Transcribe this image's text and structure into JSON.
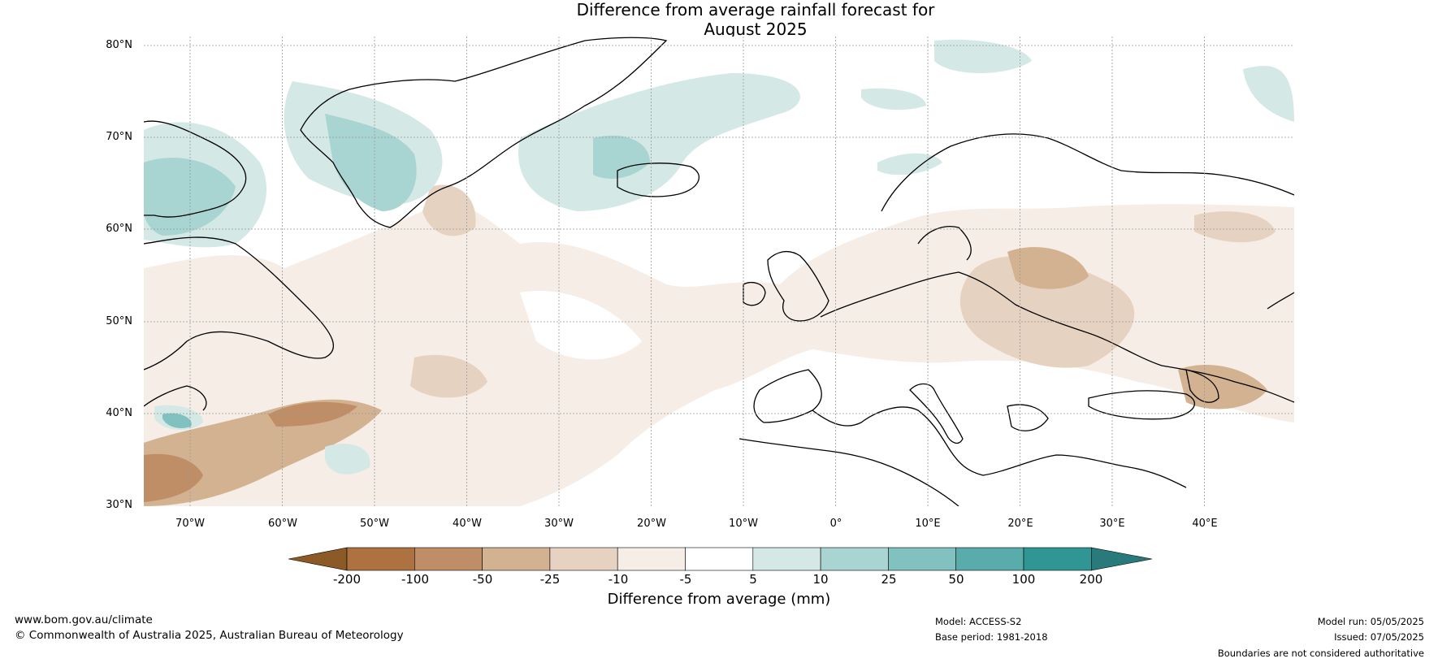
{
  "title_line1": "Difference from average rainfall forecast for",
  "title_line2": "August 2025",
  "lat_labels": [
    "80°N",
    "70°N",
    "60°N",
    "50°N",
    "40°N",
    "30°N"
  ],
  "lon_labels": [
    "70°W",
    "60°W",
    "50°W",
    "40°W",
    "30°W",
    "20°W",
    "10°W",
    "0°",
    "10°E",
    "20°E",
    "30°E",
    "40°E"
  ],
  "colorbar": {
    "tick_labels": [
      "-200",
      "-100",
      "-50",
      "-25",
      "-10",
      "-5",
      "5",
      "10",
      "25",
      "50",
      "100",
      "200"
    ],
    "colors": [
      "#8c5a26",
      "#ad7240",
      "#c08e66",
      "#d3b291",
      "#e6d2c0",
      "#f5ede6",
      "#ffffff",
      "#d4e8e6",
      "#a8d4d2",
      "#81c1bf",
      "#5aacaa",
      "#2f9694",
      "#287b7a"
    ],
    "label": "Difference from average (mm)"
  },
  "footer": {
    "website": "www.bom.gov.au/climate",
    "copyright": "© Commonwealth of Australia 2025, Australian Bureau of Meteorology",
    "model": "Model: ACCESS-S2",
    "base_period": "Base period: 1981-2018",
    "model_run": "Model run: 05/05/2025",
    "issued": "Issued: 07/05/2025",
    "boundaries_note": "Boundaries are not considered authoritative"
  }
}
